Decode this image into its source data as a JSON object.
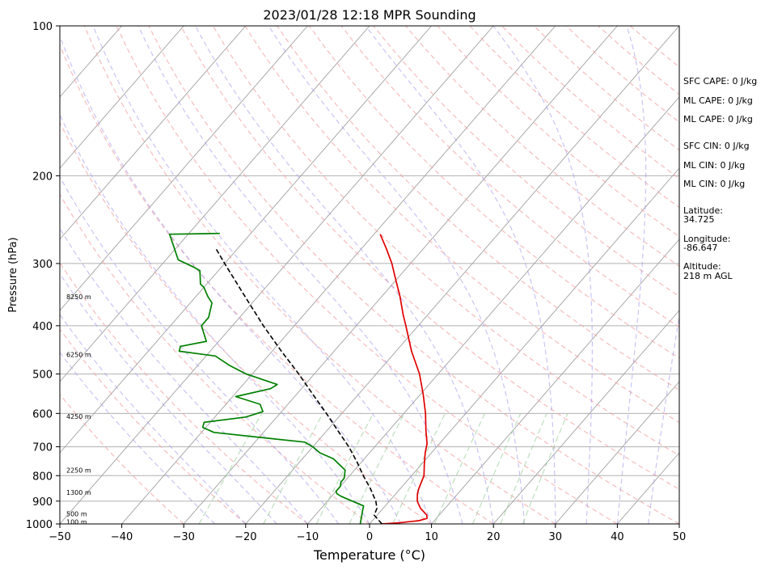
{
  "chart_data": {
    "type": "line",
    "title": "2023/01/28 12:18 MPR Sounding",
    "xlabel": "Temperature (°C)",
    "ylabel": "Pressure (hPa)",
    "xlim": [
      -50,
      50
    ],
    "ylim": [
      1000,
      100
    ],
    "y_scale": "log",
    "skew": true,
    "grid": true,
    "x_ticks": [
      -50,
      -40,
      -30,
      -20,
      -10,
      0,
      10,
      20,
      30,
      40,
      50
    ],
    "x_tick_labels": [
      "−50",
      "−40",
      "−30",
      "−20",
      "−10",
      "0",
      "10",
      "20",
      "30",
      "40",
      "50"
    ],
    "y_ticks": [
      1000,
      900,
      800,
      700,
      600,
      500,
      400,
      300,
      200,
      100
    ],
    "y_tick_labels": [
      "1000",
      "900",
      "800",
      "700",
      "600",
      "500",
      "400",
      "300",
      "200",
      "100"
    ],
    "series": [
      {
        "color": "#e00000",
        "points": [
          [
            1000,
            2.0
          ],
          [
            995,
            4.5
          ],
          [
            985,
            7.5
          ],
          [
            975,
            8.5
          ],
          [
            960,
            8.0
          ],
          [
            930,
            6.0
          ],
          [
            900,
            4.5
          ],
          [
            870,
            3.5
          ],
          [
            850,
            3.0
          ],
          [
            800,
            2.0
          ],
          [
            760,
            0.5
          ],
          [
            720,
            -1.0
          ],
          [
            690,
            -2.0
          ],
          [
            650,
            -4.0
          ],
          [
            600,
            -6.5
          ],
          [
            550,
            -9.5
          ],
          [
            500,
            -13.0
          ],
          [
            450,
            -17.5
          ],
          [
            400,
            -22.0
          ],
          [
            380,
            -24.0
          ],
          [
            350,
            -27.0
          ],
          [
            320,
            -30.5
          ],
          [
            300,
            -33.0
          ],
          [
            280,
            -36.0
          ],
          [
            262,
            -39.0
          ]
        ]
      },
      {
        "color": "#008000",
        "points": [
          [
            1000,
            -1.5
          ],
          [
            980,
            -2.0
          ],
          [
            960,
            -2.5
          ],
          [
            940,
            -3.0
          ],
          [
            920,
            -3.5
          ],
          [
            900,
            -6.0
          ],
          [
            880,
            -8.5
          ],
          [
            870,
            -9.5
          ],
          [
            860,
            -10.0
          ],
          [
            840,
            -10.0
          ],
          [
            825,
            -10.5
          ],
          [
            810,
            -10.5
          ],
          [
            795,
            -11.0
          ],
          [
            780,
            -11.5
          ],
          [
            740,
            -15.0
          ],
          [
            720,
            -18.0
          ],
          [
            700,
            -20.0
          ],
          [
            685,
            -22.0
          ],
          [
            670,
            -30.0
          ],
          [
            655,
            -38.0
          ],
          [
            640,
            -40.5
          ],
          [
            625,
            -41.0
          ],
          [
            610,
            -35.0
          ],
          [
            595,
            -33.0
          ],
          [
            575,
            -34.5
          ],
          [
            555,
            -39.5
          ],
          [
            535,
            -35.0
          ],
          [
            525,
            -34.5
          ],
          [
            500,
            -41.0
          ],
          [
            480,
            -45.0
          ],
          [
            460,
            -48.5
          ],
          [
            450,
            -55.0
          ],
          [
            440,
            -55.5
          ],
          [
            430,
            -52.0
          ],
          [
            400,
            -55.0
          ],
          [
            385,
            -55.0
          ],
          [
            360,
            -56.5
          ],
          [
            350,
            -58.0
          ],
          [
            335,
            -60.0
          ],
          [
            330,
            -61.0
          ],
          [
            310,
            -63.0
          ],
          [
            305,
            -64.5
          ],
          [
            295,
            -68.0
          ],
          [
            262,
            -73.0
          ],
          [
            261,
            -65.0
          ]
        ]
      },
      {
        "color": "#000000",
        "dashed": true,
        "points": [
          [
            1000,
            2.0
          ],
          [
            960,
            -0.5
          ],
          [
            930,
            -1.0
          ],
          [
            900,
            -2.2
          ],
          [
            850,
            -4.8
          ],
          [
            800,
            -7.8
          ],
          [
            750,
            -10.8
          ],
          [
            700,
            -14.2
          ],
          [
            650,
            -18.2
          ],
          [
            600,
            -22.5
          ],
          [
            550,
            -27.3
          ],
          [
            500,
            -32.5
          ],
          [
            450,
            -38.5
          ],
          [
            400,
            -45.0
          ],
          [
            350,
            -52.0
          ],
          [
            300,
            -60.0
          ],
          [
            280,
            -63.5
          ]
        ]
      }
    ],
    "height_labels": [
      {
        "pressure": 990,
        "text": "100 m"
      },
      {
        "pressure": 955,
        "text": "500 m"
      },
      {
        "pressure": 865,
        "text": "1300 m"
      },
      {
        "pressure": 780,
        "text": "2250 m"
      },
      {
        "pressure": 608,
        "text": "4250 m"
      },
      {
        "pressure": 457,
        "text": "6250 m"
      },
      {
        "pressure": 350,
        "text": "8250 m"
      }
    ],
    "annotations": [
      "SFC CAPE: 0 J/kg",
      "ML CAPE: 0 J/kg",
      "ML CAPE: 0 J/kg",
      "SFC CIN: 0 J/kg",
      "ML CIN: 0 J/kg",
      "ML CIN: 0 J/kg",
      "Latitude:",
      "34.725",
      "Longitude:",
      "-86.647",
      "Altitude:",
      "218 m AGL"
    ]
  }
}
